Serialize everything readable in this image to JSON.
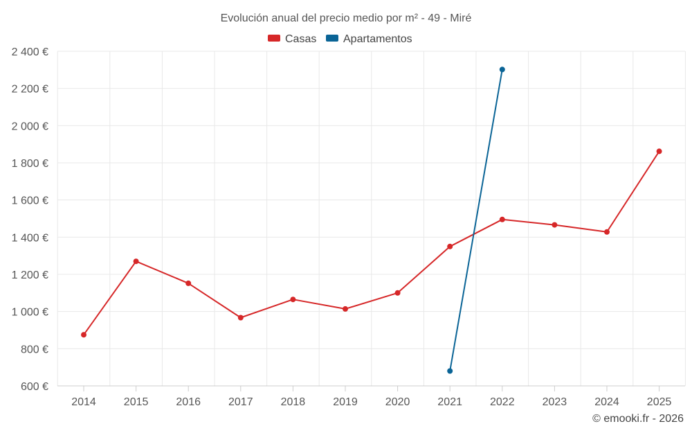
{
  "chart_data": {
    "type": "line",
    "title": "Evolución anual del precio medio por m² - 49 - Miré",
    "categories": [
      "2014",
      "2015",
      "2016",
      "2017",
      "2018",
      "2019",
      "2020",
      "2021",
      "2022",
      "2023",
      "2024",
      "2025"
    ],
    "series": [
      {
        "name": "Casas",
        "color": "#d62728",
        "values": [
          875,
          1270,
          1152,
          967,
          1065,
          1014,
          1100,
          1350,
          1495,
          1466,
          1428,
          1862
        ]
      },
      {
        "name": "Apartamentos",
        "color": "#0a6496",
        "values": [
          null,
          null,
          null,
          null,
          null,
          null,
          null,
          680,
          2302,
          null,
          null,
          null
        ]
      }
    ],
    "ylim": [
      600,
      2400
    ],
    "yticks": [
      600,
      800,
      1000,
      1200,
      1400,
      1600,
      1800,
      2000,
      2200,
      2400
    ],
    "ytick_labels": [
      "600 €",
      "800 €",
      "1 000 €",
      "1 200 €",
      "1 400 €",
      "1 600 €",
      "1 800 €",
      "2 000 €",
      "2 200 €",
      "2 400 €"
    ],
    "grid": true,
    "legend_position": "top-center"
  },
  "credit": "© emooki.fr - 2026"
}
